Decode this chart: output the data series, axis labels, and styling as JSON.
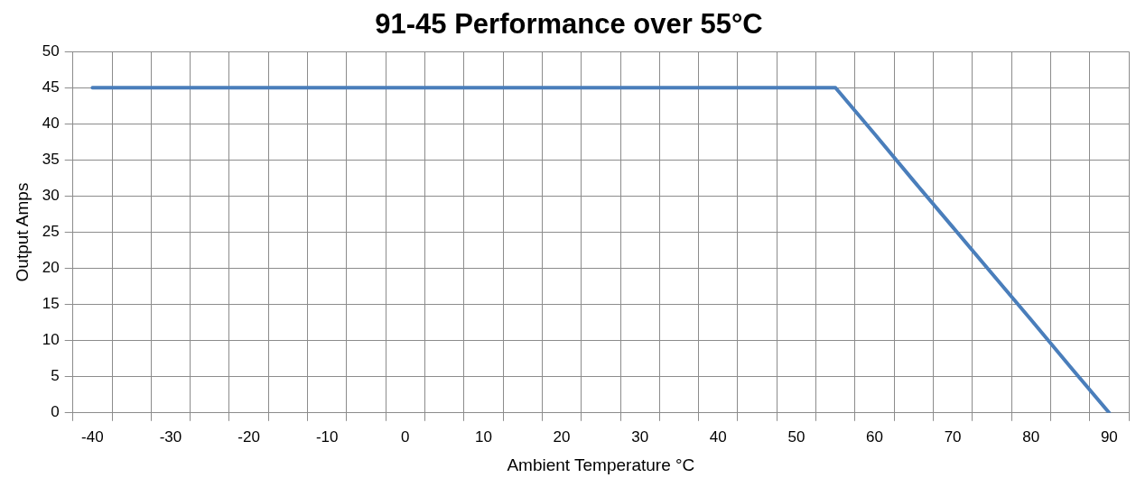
{
  "chart_data": {
    "type": "line",
    "title": "91-45 Performance over 55°C",
    "xlabel": "Ambient Temperature °C",
    "ylabel": "Output Amps",
    "categories": [
      "-40",
      null,
      "-30",
      null,
      "-20",
      null,
      "-10",
      null,
      "0",
      null,
      "10",
      null,
      "20",
      null,
      "30",
      null,
      "40",
      null,
      "50",
      null,
      "60",
      null,
      "70",
      null,
      "80",
      null,
      "90"
    ],
    "series": [
      {
        "color": "#4a7ebb",
        "values": [
          45,
          45,
          45,
          45,
          45,
          45,
          45,
          45,
          45,
          45,
          45,
          45,
          45,
          45,
          45,
          45,
          45,
          45,
          45,
          45,
          38.6,
          32.1,
          25.7,
          19.3,
          12.9,
          6.4,
          0
        ]
      }
    ],
    "ylim": [
      0,
      50
    ],
    "yticks": [
      0,
      5,
      10,
      15,
      20,
      25,
      30,
      35,
      40,
      45,
      50
    ],
    "grid": true,
    "legend": false,
    "marker": "none",
    "line_style": "solid"
  }
}
